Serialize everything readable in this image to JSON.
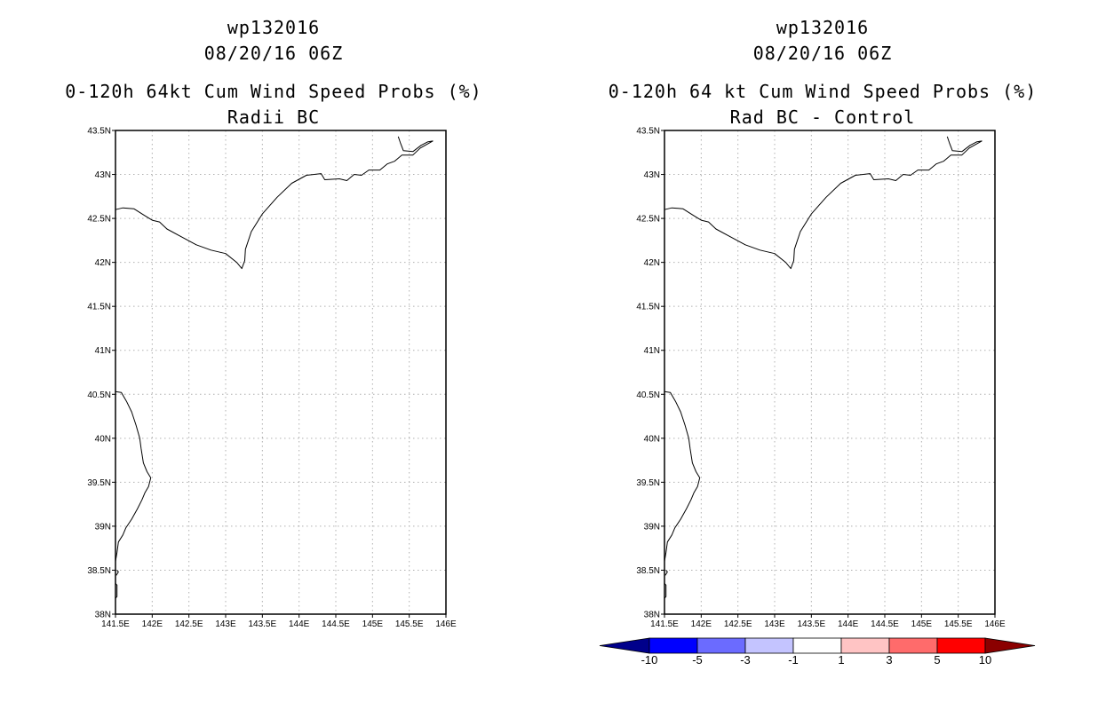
{
  "panels": [
    {
      "storm_id": "wp132016",
      "datetime": "08/20/16 06Z",
      "product": "0-120h 64kt Cum Wind Speed Probs (%)",
      "subtitle": "Radii BC"
    },
    {
      "storm_id": "wp132016",
      "datetime": "08/20/16 06Z",
      "product": "0-120h 64 kt Cum Wind Speed Probs (%)",
      "subtitle": "Rad BC - Control"
    }
  ],
  "map": {
    "lon_range": [
      141.5,
      146
    ],
    "lat_range": [
      38,
      43.5
    ],
    "lat_labels": [
      "43.5N",
      "43N",
      "42.5N",
      "42N",
      "41.5N",
      "41N",
      "40.5N",
      "40N",
      "39.5N",
      "39N",
      "38.5N",
      "38N"
    ],
    "lon_labels": [
      "141.5E",
      "142E",
      "142.5E",
      "143E",
      "143.5E",
      "144E",
      "144.5E",
      "145E",
      "145.5E",
      "146E"
    ],
    "grid_line_style": "dotted",
    "grid_color": "#b0b0b0",
    "coast_color": "#000000"
  },
  "colorbar": {
    "labels": [
      "-10",
      "-5",
      "-3",
      "-1",
      "1",
      "3",
      "5",
      "10"
    ],
    "colors": [
      "#00008b",
      "#0000ff",
      "#6b6bff",
      "#c4c4ff",
      "#ffffff",
      "#ffc4c4",
      "#ff6b6b",
      "#ff0000",
      "#8b0000"
    ]
  }
}
